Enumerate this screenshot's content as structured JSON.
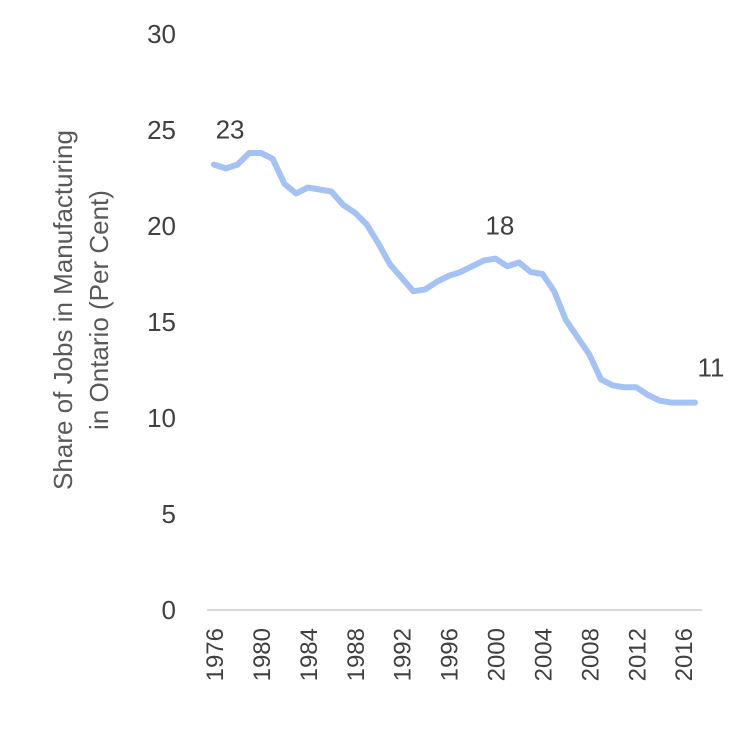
{
  "chart_data": {
    "type": "line",
    "title": "",
    "ylabel_lines": [
      "Share of Jobs in Manufacturing",
      "in Ontario (Per Cent)"
    ],
    "xlabel": "",
    "ylim": [
      0,
      30
    ],
    "yticks": [
      0,
      5,
      10,
      15,
      20,
      25,
      30
    ],
    "xticks": [
      1976,
      1980,
      1984,
      1988,
      1992,
      1996,
      2000,
      2004,
      2008,
      2012,
      2016
    ],
    "line_color": "#A4C2F4",
    "series": [
      {
        "name": "Share of Jobs in Manufacturing",
        "x": [
          1976,
          1977,
          1978,
          1979,
          1980,
          1981,
          1982,
          1983,
          1984,
          1985,
          1986,
          1987,
          1988,
          1989,
          1990,
          1991,
          1992,
          1993,
          1994,
          1995,
          1996,
          1997,
          1998,
          1999,
          2000,
          2001,
          2002,
          2003,
          2004,
          2005,
          2006,
          2007,
          2008,
          2009,
          2010,
          2011,
          2012,
          2013,
          2014,
          2015,
          2016,
          2017
        ],
        "values": [
          23.2,
          23.0,
          23.2,
          23.8,
          23.8,
          23.5,
          22.2,
          21.7,
          22.0,
          21.9,
          21.8,
          21.1,
          20.7,
          20.1,
          19.1,
          18.0,
          17.3,
          16.6,
          16.7,
          17.1,
          17.4,
          17.6,
          17.9,
          18.2,
          18.3,
          17.9,
          18.1,
          17.6,
          17.5,
          16.6,
          15.1,
          14.2,
          13.3,
          12.0,
          11.7,
          11.6,
          11.6,
          11.2,
          10.9,
          10.8,
          10.8,
          10.8
        ]
      }
    ],
    "annotations": [
      {
        "x": 1976,
        "y": 23.2,
        "label": "23"
      },
      {
        "x": 1999,
        "y": 18.2,
        "label": "18"
      },
      {
        "x": 2017,
        "y": 10.8,
        "label": "11"
      }
    ]
  }
}
